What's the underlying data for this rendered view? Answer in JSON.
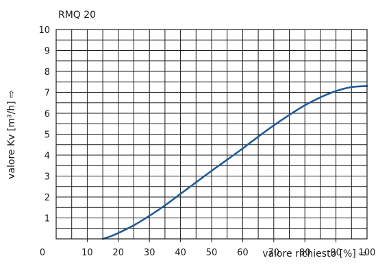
{
  "chart_data": {
    "type": "line",
    "title": "RMQ 20",
    "xlabel": "valore richiesto [%] ⇨",
    "ylabel": "valore Kv [m³/h] ⇨",
    "xlim": [
      0,
      100
    ],
    "ylim": [
      0,
      10
    ],
    "x_ticks": [
      0,
      10,
      20,
      30,
      40,
      50,
      60,
      70,
      80,
      90,
      100
    ],
    "y_ticks": [
      1,
      2,
      3,
      4,
      5,
      6,
      7,
      8,
      9,
      10
    ],
    "x_minor_step": 5,
    "y_minor_step": 0.5,
    "grid": true,
    "series": [
      {
        "color": "#1f5a99",
        "x": [
          15,
          17.5,
          20,
          25,
          30,
          35,
          40,
          45,
          50,
          55,
          60,
          65,
          70,
          75,
          80,
          85,
          90,
          95,
          100
        ],
        "y": [
          0.0,
          0.12,
          0.28,
          0.65,
          1.1,
          1.6,
          2.15,
          2.7,
          3.25,
          3.78,
          4.32,
          4.88,
          5.42,
          5.92,
          6.38,
          6.76,
          7.06,
          7.25,
          7.3
        ]
      }
    ]
  }
}
